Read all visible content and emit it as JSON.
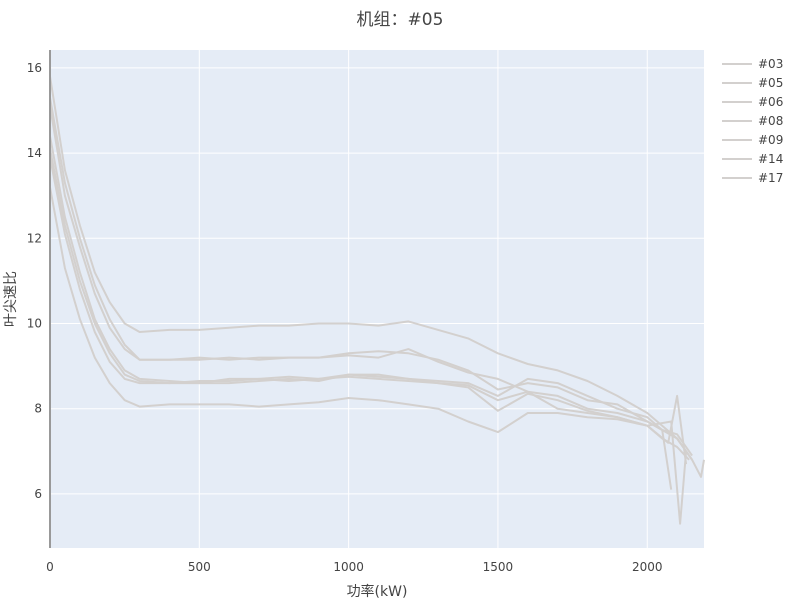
{
  "chart_data": {
    "type": "line",
    "title": "机组：#05",
    "xlabel": "功率(kW)",
    "ylabel": "叶尖速比",
    "xlim": [
      0,
      2190
    ],
    "ylim": [
      4.73,
      16.42
    ],
    "xticks": [
      0,
      500,
      1000,
      1500,
      2000
    ],
    "yticks": [
      6,
      8,
      10,
      12,
      14,
      16
    ],
    "grid": true,
    "legend_position": "top-right",
    "plot_background": "#e5ecf6",
    "line_color": "#d3d0ce",
    "series": [
      {
        "name": "#03",
        "x": [
          0,
          50,
          100,
          150,
          200,
          250,
          300,
          400,
          500,
          600,
          700,
          800,
          900,
          1000,
          1100,
          1200,
          1300,
          1400,
          1500,
          1600,
          1700,
          1800,
          1900,
          2000,
          2050,
          2100,
          2150
        ],
        "y": [
          15.8,
          13.6,
          12.3,
          11.2,
          10.5,
          10.0,
          9.8,
          9.85,
          9.85,
          9.9,
          9.95,
          9.95,
          10.0,
          10.0,
          9.95,
          10.05,
          9.85,
          9.65,
          9.3,
          9.05,
          8.9,
          8.65,
          8.3,
          7.9,
          7.6,
          7.3,
          6.8
        ]
      },
      {
        "name": "#05",
        "x": [
          0,
          50,
          100,
          150,
          200,
          250,
          300,
          400,
          500,
          600,
          700,
          800,
          900,
          1000,
          1100,
          1200,
          1300,
          1400,
          1500,
          1600,
          1700,
          1800,
          1900,
          2000,
          2050,
          2100,
          2150
        ],
        "y": [
          15.3,
          13.3,
          12.0,
          10.9,
          10.1,
          9.5,
          9.15,
          9.15,
          9.15,
          9.2,
          9.15,
          9.2,
          9.2,
          9.3,
          9.35,
          9.3,
          9.15,
          8.9,
          8.45,
          8.6,
          8.5,
          8.2,
          8.1,
          7.7,
          7.5,
          7.4,
          6.9
        ]
      },
      {
        "name": "#06",
        "x": [
          0,
          50,
          100,
          150,
          200,
          250,
          300,
          400,
          500,
          600,
          700,
          800,
          900,
          1000,
          1100,
          1200,
          1300,
          1400,
          1500,
          1600,
          1700,
          1800,
          1900,
          2000,
          2050,
          2080
        ],
        "y": [
          15.1,
          13.0,
          11.8,
          10.7,
          9.9,
          9.4,
          9.15,
          9.15,
          9.2,
          9.15,
          9.2,
          9.2,
          9.2,
          9.25,
          9.2,
          9.4,
          9.1,
          8.85,
          8.7,
          8.4,
          8.3,
          8.0,
          7.9,
          7.7,
          7.5,
          6.1
        ]
      },
      {
        "name": "#08",
        "x": [
          0,
          50,
          100,
          150,
          200,
          250,
          300,
          400,
          500,
          600,
          700,
          800,
          900,
          1000,
          1100,
          1200,
          1300,
          1400,
          1500,
          1600,
          1700,
          1800,
          1900,
          2000,
          2050,
          2100,
          2150,
          2180,
          2190
        ],
        "y": [
          14.4,
          12.5,
          11.2,
          10.1,
          9.4,
          8.9,
          8.7,
          8.65,
          8.6,
          8.7,
          8.7,
          8.75,
          8.7,
          8.8,
          8.75,
          8.7,
          8.65,
          8.6,
          8.3,
          8.7,
          8.6,
          8.3,
          8.0,
          7.8,
          7.5,
          7.3,
          6.8,
          6.4,
          6.8
        ]
      },
      {
        "name": "#09",
        "x": [
          0,
          50,
          100,
          150,
          200,
          250,
          300,
          400,
          500,
          600,
          700,
          800,
          900,
          1000,
          1100,
          1200,
          1300,
          1400,
          1500,
          1600,
          1700,
          1800,
          1900,
          2000,
          2080,
          2110,
          2130
        ],
        "y": [
          14.1,
          12.3,
          11.0,
          10.0,
          9.3,
          8.8,
          8.65,
          8.6,
          8.65,
          8.65,
          8.7,
          8.65,
          8.7,
          8.75,
          8.7,
          8.65,
          8.6,
          8.55,
          8.2,
          8.4,
          8.0,
          7.9,
          7.8,
          7.6,
          7.7,
          5.3,
          7.0
        ]
      },
      {
        "name": "#14",
        "x": [
          0,
          50,
          100,
          150,
          200,
          250,
          300,
          400,
          500,
          600,
          700,
          800,
          900,
          1000,
          1100,
          1200,
          1300,
          1400,
          1500,
          1600,
          1700,
          1800,
          1900,
          2000,
          2070,
          2100,
          2130
        ],
        "y": [
          13.9,
          12.1,
          10.8,
          9.8,
          9.1,
          8.7,
          8.6,
          8.6,
          8.6,
          8.6,
          8.65,
          8.7,
          8.65,
          8.8,
          8.8,
          8.7,
          8.6,
          8.5,
          7.95,
          8.35,
          8.2,
          7.95,
          7.8,
          7.6,
          7.2,
          8.3,
          6.7
        ]
      },
      {
        "name": "#17",
        "x": [
          0,
          50,
          100,
          150,
          200,
          250,
          300,
          400,
          500,
          600,
          700,
          800,
          900,
          1000,
          1100,
          1200,
          1300,
          1400,
          1500,
          1600,
          1700,
          1800,
          1900,
          2000,
          2050,
          2100,
          2140
        ],
        "y": [
          13.2,
          11.3,
          10.1,
          9.2,
          8.6,
          8.2,
          8.05,
          8.1,
          8.1,
          8.1,
          8.05,
          8.1,
          8.15,
          8.25,
          8.2,
          8.1,
          8.0,
          7.7,
          7.45,
          7.9,
          7.9,
          7.8,
          7.75,
          7.6,
          7.3,
          7.1,
          6.8
        ]
      }
    ]
  }
}
